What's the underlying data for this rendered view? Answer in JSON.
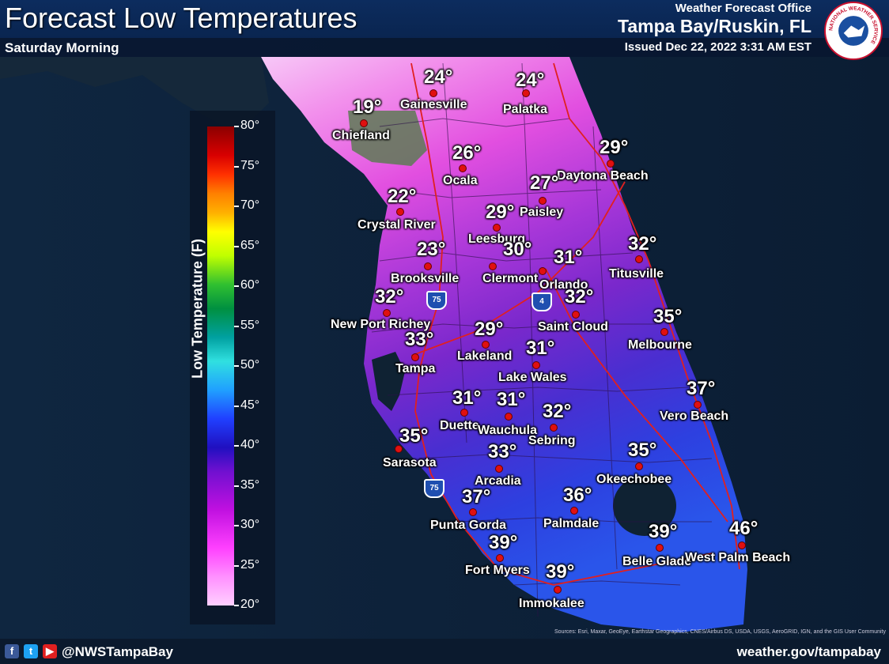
{
  "header": {
    "title": "Forecast Low Temperatures",
    "subtitle": "Saturday Morning",
    "office_line1": "Weather Forecast Office",
    "office_line2": "Tampa Bay/Ruskin, FL",
    "issued": "Issued Dec 22, 2022 3:31 AM EST"
  },
  "logo": {
    "text": "NATIONAL WEATHER SERVICE"
  },
  "legend": {
    "title": "Low Temperature (F)",
    "ticks": [
      "80°",
      "75°",
      "70°",
      "65°",
      "60°",
      "55°",
      "50°",
      "45°",
      "40°",
      "35°",
      "30°",
      "25°",
      "20°"
    ]
  },
  "cities": [
    {
      "name": "Gainesville",
      "temp": "24°"
    },
    {
      "name": "Palatka",
      "temp": "24°"
    },
    {
      "name": "Chiefland",
      "temp": "19°"
    },
    {
      "name": "Ocala",
      "temp": "26°"
    },
    {
      "name": "Daytona Beach",
      "temp": "29°"
    },
    {
      "name": "Paisley",
      "temp": "27°"
    },
    {
      "name": "Crystal River",
      "temp": "22°"
    },
    {
      "name": "Leesburg",
      "temp": "29°"
    },
    {
      "name": "Brooksville",
      "temp": "23°"
    },
    {
      "name": "Clermont",
      "temp": "30°"
    },
    {
      "name": "Orlando",
      "temp": "31°"
    },
    {
      "name": "Titusville",
      "temp": "32°"
    },
    {
      "name": "New Port Richey",
      "temp": "32°"
    },
    {
      "name": "Saint Cloud",
      "temp": "32°"
    },
    {
      "name": "Melbourne",
      "temp": "35°"
    },
    {
      "name": "Tampa",
      "temp": "33°"
    },
    {
      "name": "Lakeland",
      "temp": "29°"
    },
    {
      "name": "Lake Wales",
      "temp": "31°"
    },
    {
      "name": "Vero Beach",
      "temp": "37°"
    },
    {
      "name": "Duette",
      "temp": "31°"
    },
    {
      "name": "Wauchula",
      "temp": "31°"
    },
    {
      "name": "Sebring",
      "temp": "32°"
    },
    {
      "name": "Sarasota",
      "temp": "35°"
    },
    {
      "name": "Arcadia",
      "temp": "33°"
    },
    {
      "name": "Okeechobee",
      "temp": "35°"
    },
    {
      "name": "Punta Gorda",
      "temp": "37°"
    },
    {
      "name": "Palmdale",
      "temp": "36°"
    },
    {
      "name": "Fort Myers",
      "temp": "39°"
    },
    {
      "name": "Belle Glade",
      "temp": "39°"
    },
    {
      "name": "West Palm Beach",
      "temp": "46°"
    },
    {
      "name": "Immokalee",
      "temp": "39°"
    }
  ],
  "highways": {
    "i75a": "75",
    "i75b": "75",
    "i4": "4"
  },
  "footer": {
    "handle": "@NWSTampaBay",
    "website": "weather.gov/tampabay",
    "sources": "Sources: Esri, Maxar, GeoEye, Earthstar Geographics, CNES/Airbus DS, USDA, USGS, AeroGRID, IGN, and the GIS User Community"
  },
  "colors": {
    "dot": "#e01010",
    "header": "#0c2c5e"
  }
}
